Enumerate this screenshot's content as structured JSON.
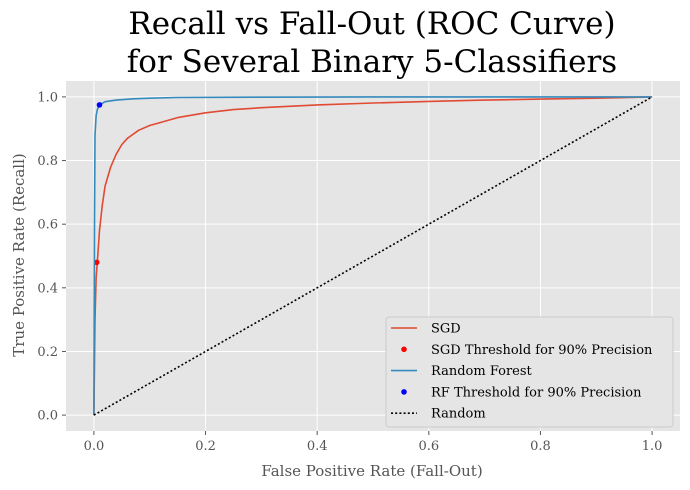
{
  "chart_data": {
    "type": "line",
    "title": [
      "Recall vs Fall-Out (ROC Curve)",
      "for Several Binary 5-Classifiers"
    ],
    "xlabel": "False Positive Rate (Fall-Out)",
    "ylabel": "True Positive Rate (Recall)",
    "xlim": [
      -0.05,
      1.05
    ],
    "ylim": [
      -0.05,
      1.05
    ],
    "xticks": [
      "0.0",
      "0.2",
      "0.4",
      "0.6",
      "0.8",
      "1.0"
    ],
    "yticks": [
      "0.0",
      "0.2",
      "0.4",
      "0.6",
      "0.8",
      "1.0"
    ],
    "grid": true,
    "legend_position": "lower-right",
    "series": [
      {
        "name": "SGD",
        "kind": "line",
        "color": "#e24a33",
        "x": [
          0,
          0.002,
          0.004,
          0.006,
          0.01,
          0.015,
          0.02,
          0.03,
          0.04,
          0.05,
          0.06,
          0.08,
          0.1,
          0.12,
          0.15,
          0.2,
          0.25,
          0.3,
          0.4,
          0.5,
          0.6,
          0.7,
          0.8,
          0.9,
          1.0
        ],
        "y": [
          0,
          0.3,
          0.43,
          0.48,
          0.58,
          0.66,
          0.72,
          0.78,
          0.82,
          0.85,
          0.87,
          0.895,
          0.91,
          0.92,
          0.935,
          0.95,
          0.96,
          0.966,
          0.975,
          0.981,
          0.986,
          0.99,
          0.993,
          0.996,
          1.0
        ]
      },
      {
        "name": "SGD Threshold for 90% Precision",
        "kind": "point",
        "color": "#ff0000",
        "x": [
          0.005
        ],
        "y": [
          0.48
        ]
      },
      {
        "name": "Random Forest",
        "kind": "line",
        "color": "#348abd",
        "x": [
          0,
          0.001,
          0.002,
          0.004,
          0.006,
          0.01,
          0.02,
          0.04,
          0.07,
          0.1,
          0.15,
          0.3,
          0.5,
          0.8,
          1.0
        ],
        "y": [
          0,
          0.6,
          0.88,
          0.94,
          0.96,
          0.975,
          0.985,
          0.99,
          0.994,
          0.996,
          0.998,
          0.999,
          1.0,
          1.0,
          1.0
        ]
      },
      {
        "name": "RF Threshold for 90% Precision",
        "kind": "point",
        "color": "#0000ff",
        "x": [
          0.01
        ],
        "y": [
          0.975
        ]
      },
      {
        "name": "Random",
        "kind": "dotted",
        "color": "#000000",
        "x": [
          0,
          1
        ],
        "y": [
          0,
          1
        ]
      }
    ]
  }
}
